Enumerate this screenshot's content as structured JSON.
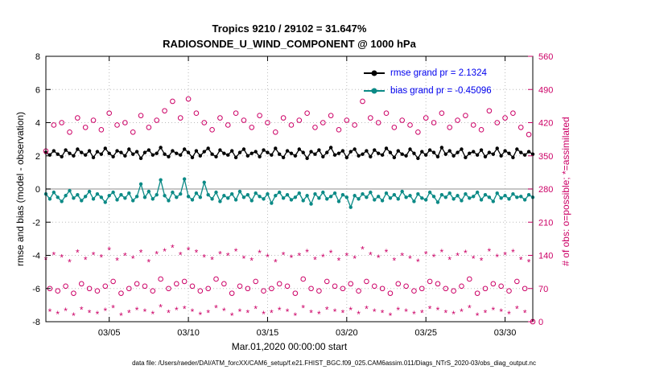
{
  "chart_data": {
    "type": "line",
    "title": "Tropics 9210 / 29102 = 31.647%",
    "subtitle": "RADIOSONDE_U_WIND_COMPONENT @ 1000 hPa",
    "xlabel": "Mar.01,2020 00:00:00 start",
    "ylabel_left": "rmse and bias (model - observation)",
    "ylabel_right": "# of obs: o=possible; *=assimilated",
    "footer": "data file: /Users/raeder/DAI/ATM_forcXX/CAM6_setup/f.e21.FHIST_BGC.f09_025.CAM6assim.011/Diags_NTrS_2020-03/obs_diag_output.nc",
    "xlim": [
      1,
      31.75
    ],
    "x_start_day": 1,
    "x_step_days": 0.25,
    "ylim_left": [
      -8,
      8
    ],
    "ylim_right": [
      0,
      560
    ],
    "yticks_left": [
      -8,
      -6,
      -4,
      -2,
      0,
      2,
      4,
      6,
      8
    ],
    "yticks_right": [
      0,
      70,
      140,
      210,
      280,
      350,
      420,
      490,
      560
    ],
    "xticks": [
      {
        "day": 5,
        "label": "03/05"
      },
      {
        "day": 10,
        "label": "03/10"
      },
      {
        "day": 15,
        "label": "03/15"
      },
      {
        "day": 20,
        "label": "03/20"
      },
      {
        "day": 25,
        "label": "03/25"
      },
      {
        "day": 30,
        "label": "03/30"
      }
    ],
    "grid": true,
    "grid_color": "#bbbbbb",
    "zero_line_color": "#b3b3b3",
    "count_color": "#cc0066",
    "legend_text_color": "#0000ee",
    "series": [
      {
        "name": "rmse",
        "legend": "rmse grand pr = 2.1324",
        "color": "#000000",
        "marker": "dot",
        "axis": "left",
        "values": [
          2.2,
          2.05,
          2.3,
          2.1,
          1.95,
          2.35,
          2.15,
          2.0,
          2.4,
          2.2,
          2.05,
          2.3,
          1.9,
          2.25,
          2.1,
          2.45,
          2.15,
          1.95,
          2.3,
          2.2,
          2.0,
          2.4,
          2.1,
          2.25,
          1.85,
          2.2,
          2.35,
          2.05,
          2.15,
          2.5,
          2.1,
          1.95,
          2.3,
          2.15,
          2.05,
          2.4,
          2.2,
          1.9,
          2.3,
          2.0,
          2.25,
          2.45,
          2.1,
          1.95,
          2.35,
          2.15,
          2.05,
          2.3,
          1.9,
          2.2,
          2.4,
          2.0,
          2.15,
          2.25,
          1.95,
          2.35,
          2.2,
          2.05,
          2.45,
          2.1,
          1.9,
          2.3,
          2.15,
          2.0,
          2.4,
          2.2,
          1.85,
          2.25,
          2.1,
          2.35,
          1.95,
          2.2,
          2.5,
          2.05,
          2.15,
          2.3,
          1.9,
          2.25,
          2.4,
          2.0,
          2.1,
          2.3,
          1.95,
          2.35,
          2.15,
          2.05,
          2.45,
          2.2,
          1.9,
          2.3,
          2.1,
          2.0,
          2.4,
          2.15,
          1.85,
          2.25,
          2.05,
          2.35,
          2.2,
          1.95,
          2.5,
          2.1,
          2.3,
          2.0,
          2.2,
          2.4,
          1.9,
          2.15,
          2.25,
          2.05,
          2.35,
          1.95,
          2.2,
          2.1,
          2.45,
          2.0,
          2.3,
          2.15,
          1.9,
          2.4,
          2.2,
          2.05,
          2.25,
          2.1
        ]
      },
      {
        "name": "bias",
        "legend": "bias grand pr = -0.45096",
        "color": "#0b8a86",
        "marker": "dot",
        "axis": "left",
        "values": [
          -0.3,
          -0.6,
          -0.2,
          -0.5,
          -0.75,
          -0.4,
          -0.1,
          -0.55,
          -0.35,
          -0.7,
          -0.45,
          -0.15,
          -0.6,
          -0.3,
          -0.5,
          -0.8,
          -0.4,
          -0.2,
          -0.65,
          -0.35,
          -0.55,
          -0.25,
          -0.7,
          -0.45,
          0.3,
          -0.5,
          -0.15,
          -0.6,
          -0.35,
          0.55,
          -0.4,
          -0.7,
          -0.2,
          -0.5,
          -0.3,
          0.6,
          -0.45,
          -0.65,
          -0.25,
          -0.5,
          0.4,
          -0.35,
          -0.6,
          -0.2,
          -0.75,
          -0.4,
          -0.55,
          -0.3,
          -0.65,
          -0.15,
          -0.5,
          -0.35,
          -0.7,
          -0.25,
          -0.45,
          -0.6,
          -0.3,
          -0.85,
          -0.4,
          -0.2,
          -0.55,
          -0.35,
          -0.65,
          -0.5,
          -0.25,
          -0.7,
          -0.4,
          -0.9,
          -0.3,
          -0.55,
          -0.2,
          -0.6,
          -0.45,
          -0.25,
          -0.75,
          -0.35,
          -0.5,
          -1.1,
          -0.4,
          -0.6,
          -0.3,
          -0.5,
          -0.2,
          -0.65,
          -0.45,
          -0.7,
          -0.25,
          -0.55,
          -0.35,
          -0.6,
          -0.15,
          -0.5,
          -0.4,
          -0.75,
          -0.3,
          -0.55,
          -0.65,
          -0.2,
          -0.45,
          -0.8,
          -0.35,
          -0.5,
          -0.25,
          -0.6,
          -0.4,
          -0.7,
          -0.3,
          -0.55,
          -0.45,
          -0.2,
          -0.65,
          -0.35,
          -0.5,
          -0.75,
          -0.25,
          -0.55,
          -0.4,
          -0.6,
          -0.3,
          -0.5,
          -0.45,
          -0.65,
          -0.35,
          -0.5
        ]
      },
      {
        "name": "possible",
        "color": "#cc0066",
        "marker": "circle",
        "axis": "right",
        "values": [
          360,
          70,
          415,
          65,
          420,
          75,
          400,
          60,
          430,
          80,
          410,
          70,
          425,
          65,
          405,
          75,
          440,
          85,
          415,
          60,
          420,
          70,
          400,
          80,
          435,
          75,
          410,
          65,
          425,
          90,
          445,
          70,
          465,
          80,
          430,
          85,
          470,
          75,
          440,
          65,
          420,
          70,
          405,
          90,
          430,
          80,
          415,
          60,
          440,
          75,
          425,
          70,
          410,
          85,
          435,
          65,
          420,
          70,
          400,
          80,
          430,
          75,
          415,
          60,
          425,
          90,
          440,
          70,
          410,
          65,
          420,
          85,
          435,
          75,
          405,
          70,
          425,
          80,
          415,
          65,
          465,
          85,
          430,
          75,
          420,
          70,
          440,
          60,
          410,
          80,
          425,
          75,
          415,
          65,
          400,
          70,
          430,
          85,
          420,
          80,
          440,
          70,
          410,
          65,
          425,
          75,
          435,
          90,
          415,
          60,
          405,
          70,
          445,
          80,
          420,
          75,
          430,
          65,
          440,
          85,
          410,
          70,
          395,
          0
        ]
      },
      {
        "name": "assimilated",
        "color": "#cc0066",
        "marker": "asterisk",
        "axis": "right",
        "values": [
          130,
          20,
          140,
          15,
          135,
          22,
          125,
          12,
          145,
          25,
          130,
          18,
          140,
          15,
          135,
          22,
          150,
          28,
          128,
          12,
          138,
          18,
          132,
          24,
          145,
          20,
          125,
          15,
          142,
          30,
          148,
          18,
          155,
          24,
          140,
          26,
          150,
          20,
          145,
          14,
          135,
          18,
          130,
          28,
          142,
          22,
          138,
          12,
          148,
          20,
          132,
          18,
          128,
          26,
          144,
          15,
          136,
          18,
          125,
          24,
          140,
          20,
          134,
          12,
          138,
          28,
          146,
          18,
          130,
          15,
          136,
          25,
          144,
          20,
          128,
          18,
          138,
          24,
          132,
          15,
          152,
          26,
          140,
          20,
          134,
          18,
          146,
          12,
          128,
          24,
          138,
          20,
          132,
          15,
          126,
          18,
          142,
          26,
          136,
          24,
          146,
          18,
          130,
          15,
          138,
          20,
          144,
          28,
          132,
          12,
          128,
          18,
          148,
          24,
          136,
          20,
          140,
          15,
          146,
          26,
          130,
          18,
          125,
          0
        ]
      }
    ]
  }
}
